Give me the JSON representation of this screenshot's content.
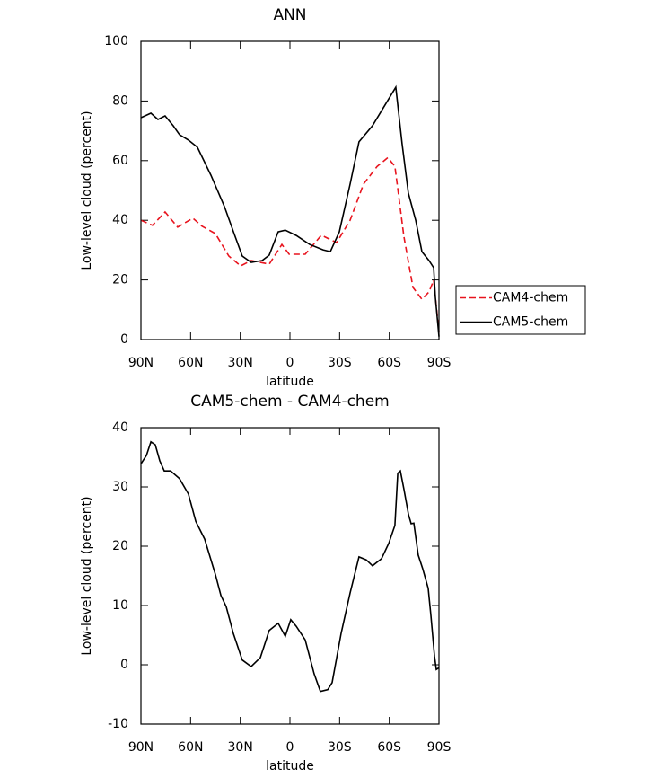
{
  "chart_data": [
    {
      "type": "line",
      "title": "ANN",
      "xlabel": "latitude",
      "ylabel": "Low-level cloud (percent)",
      "xlim": [
        90,
        -90
      ],
      "xticks": [
        {
          "value": 90,
          "label": "90N"
        },
        {
          "value": 60,
          "label": "60N"
        },
        {
          "value": 30,
          "label": "30N"
        },
        0,
        {
          "value": -30,
          "label": "30S"
        },
        {
          "value": -60,
          "label": "60S"
        },
        {
          "value": -90,
          "label": "90S"
        }
      ],
      "ylim": [
        0,
        100
      ],
      "yticks": [
        0,
        20,
        40,
        60,
        80,
        100
      ],
      "legend": "right",
      "series": [
        {
          "name": "CAM4-chem",
          "color": "#e8141e",
          "line_style": "dashed",
          "x": [
            90,
            83.0,
            75.4,
            67.8,
            58.6,
            53.1,
            45.0,
            36.9,
            29.8,
            23.4,
            12.5,
            4.9,
            0.5,
            -9.2,
            -19.0,
            -28.2,
            -36.3,
            -44.4,
            -52.6,
            -59.1,
            -63.4,
            -68.8,
            -74.3,
            -79.7,
            -84.0,
            -86.8,
            -90
          ],
          "values": [
            40,
            38.3,
            42.8,
            37.7,
            40.7,
            38,
            35.5,
            28,
            24.7,
            26.5,
            25.3,
            31.9,
            28.6,
            28.6,
            35,
            32.5,
            40,
            52.1,
            58,
            61,
            58.1,
            34.6,
            17.5,
            13.5,
            16,
            19.9,
            2.4
          ]
        },
        {
          "name": "CAM5-chem",
          "color": "#000000",
          "line_style": "solid",
          "x": [
            90,
            84.0,
            79.7,
            75.4,
            70.5,
            66.7,
            61.3,
            55.9,
            47.7,
            39.6,
            33.1,
            28.8,
            23.4,
            16.8,
            12.5,
            7.1,
            2.8,
            -3.8,
            -11.9,
            -20.0,
            -24.4,
            -29.8,
            -36.3,
            -41.7,
            -49.8,
            -58.0,
            -63.9,
            -67.7,
            -71.5,
            -75.9,
            -79.7,
            -84.0,
            -86.8,
            -87.8,
            -90
          ],
          "values": [
            74.4,
            75.9,
            73.8,
            75,
            71.7,
            68.7,
            66.9,
            64.5,
            55.1,
            44.6,
            34.6,
            28,
            25.9,
            26.5,
            28.3,
            36.1,
            36.7,
            34.9,
            31.9,
            30.1,
            29.5,
            36.1,
            52.1,
            66.3,
            71.7,
            79.2,
            84.6,
            65.7,
            49.1,
            40.1,
            29.5,
            26.5,
            24.1,
            14.5,
            1
          ]
        }
      ]
    },
    {
      "type": "line",
      "title": "CAM5-chem - CAM4-chem",
      "xlabel": "latitude",
      "ylabel": "Low-level cloud (percent)",
      "xlim": [
        90,
        -90
      ],
      "xticks": [
        {
          "value": 90,
          "label": "90N"
        },
        {
          "value": 60,
          "label": "60N"
        },
        {
          "value": 30,
          "label": "30N"
        },
        0,
        {
          "value": -30,
          "label": "30S"
        },
        {
          "value": -60,
          "label": "60S"
        },
        {
          "value": -90,
          "label": "90S"
        }
      ],
      "ylim": [
        -10,
        40
      ],
      "yticks": [
        -10,
        0,
        10,
        20,
        30,
        40
      ],
      "series": [
        {
          "color": "#000000",
          "line_style": "solid",
          "x": [
            90,
            86.7,
            84.0,
            81.3,
            78.6,
            75.9,
            72.1,
            66.7,
            61.3,
            56.9,
            51.5,
            45.0,
            41.7,
            38.5,
            34.2,
            28.8,
            23.4,
            17.9,
            12.5,
            7.1,
            2.8,
            -0.5,
            -3.8,
            -9.2,
            -14.6,
            -18.4,
            -22.8,
            -25.5,
            -30.9,
            -36.3,
            -41.7,
            -46.1,
            -49.9,
            -55.3,
            -59.7,
            -63.4,
            -65.1,
            -66.7,
            -68.9,
            -71.6,
            -73.2,
            -74.8,
            -77.5,
            -80.2,
            -83.5,
            -85.1,
            -87.3,
            -88.4,
            -90
          ],
          "values": [
            33.9,
            35.3,
            37.6,
            37.1,
            34.4,
            32.7,
            32.7,
            31.4,
            28.8,
            24.2,
            21.2,
            15.2,
            11.7,
            9.8,
            5.3,
            0.8,
            -0.3,
            1.2,
            5.8,
            7,
            4.8,
            7.6,
            6.5,
            4.2,
            -1.5,
            -4.5,
            -4.2,
            -3,
            5.3,
            12.1,
            18.2,
            17.7,
            16.7,
            17.9,
            20.5,
            23.5,
            32.3,
            32.7,
            29.5,
            25.3,
            23.8,
            23.9,
            18.5,
            16.2,
            12.9,
            8.3,
            1.5,
            -0.8,
            -0.5
          ]
        }
      ]
    }
  ]
}
